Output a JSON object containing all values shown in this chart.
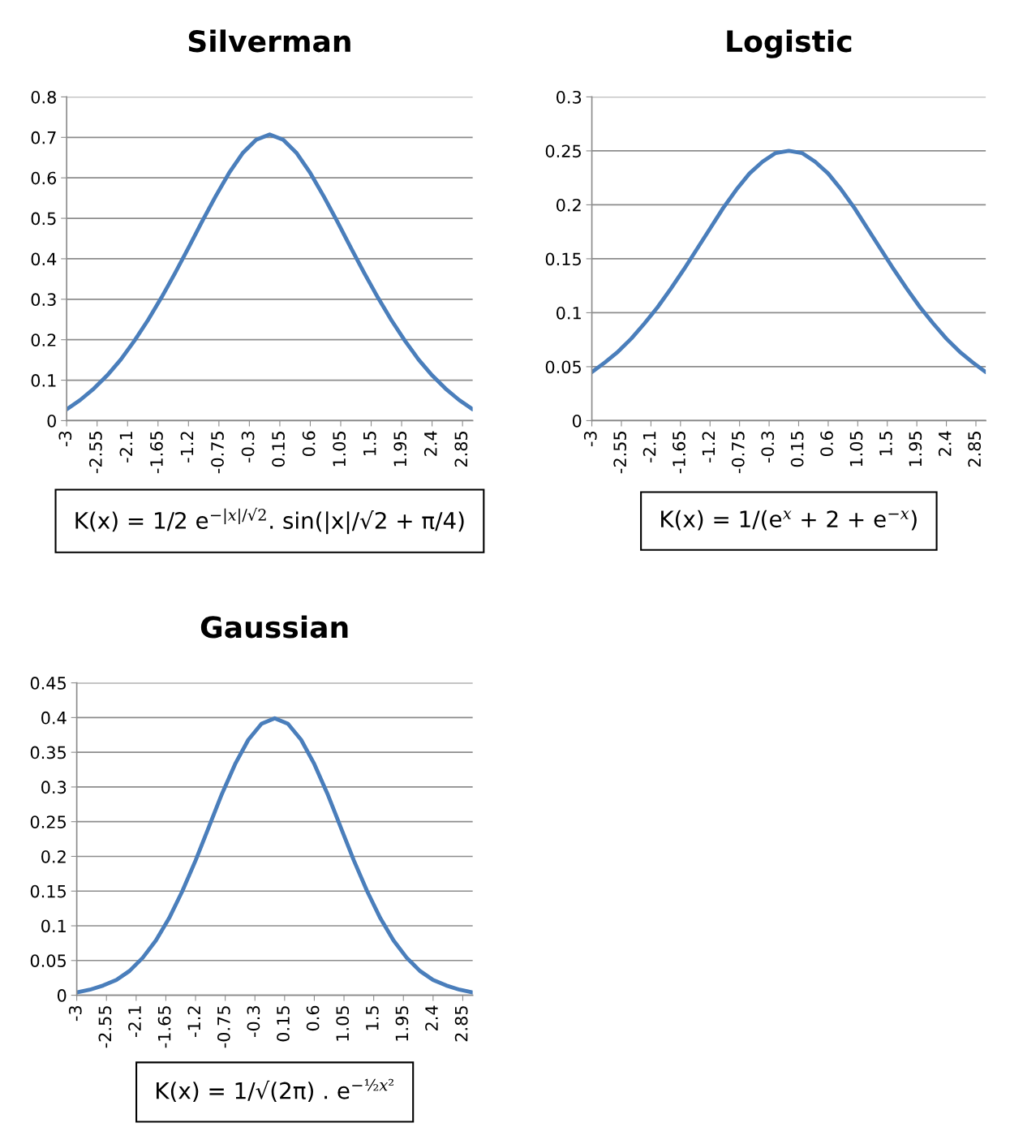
{
  "chart_data": [
    {
      "type": "line",
      "title": "Silverman",
      "x": [
        -3,
        -2.8,
        -2.6,
        -2.4,
        -2.2,
        -2,
        -1.8,
        -1.6,
        -1.4,
        -1.2,
        -1,
        -0.8,
        -0.6,
        -0.4,
        -0.2,
        0,
        0.2,
        0.4,
        0.6,
        0.8,
        1,
        1.2,
        1.4,
        1.6,
        1.8,
        2,
        2.2,
        2.4,
        2.6,
        2.8,
        3
      ],
      "series": [
        {
          "color": "#4a7ebb",
          "values": [
            0.028,
            0.051,
            0.079,
            0.112,
            0.151,
            0.197,
            0.248,
            0.304,
            0.364,
            0.427,
            0.492,
            0.554,
            0.612,
            0.661,
            0.694,
            0.707,
            0.694,
            0.661,
            0.612,
            0.554,
            0.492,
            0.427,
            0.364,
            0.304,
            0.248,
            0.197,
            0.151,
            0.112,
            0.079,
            0.051,
            0.028
          ]
        }
      ],
      "xlim": [
        -3,
        3
      ],
      "xticks": [
        -3,
        -2.55,
        -2.1,
        -1.65,
        -1.2,
        -0.75,
        -0.3,
        0.15,
        0.6,
        1.05,
        1.5,
        1.95,
        2.4,
        2.85
      ],
      "ylim": [
        0,
        0.8
      ],
      "yticks": [
        0,
        0.1,
        0.2,
        0.3,
        0.4,
        0.5,
        0.6,
        0.7,
        0.8
      ],
      "grid": "y",
      "annotations": [
        "K(x) = 1/2 e$^{−|x|/√2}$. sin(|x|/√2 + π/4)"
      ]
    },
    {
      "type": "line",
      "title": "Logistic",
      "x": [
        -3,
        -2.8,
        -2.6,
        -2.4,
        -2.2,
        -2,
        -1.8,
        -1.6,
        -1.4,
        -1.2,
        -1,
        -0.8,
        -0.6,
        -0.4,
        -0.2,
        0,
        0.2,
        0.4,
        0.6,
        0.8,
        1,
        1.2,
        1.4,
        1.6,
        1.8,
        2,
        2.2,
        2.4,
        2.6,
        2.8,
        3
      ],
      "series": [
        {
          "color": "#4a7ebb",
          "values": [
            0.045,
            0.054,
            0.064,
            0.076,
            0.09,
            0.105,
            0.122,
            0.14,
            0.159,
            0.178,
            0.197,
            0.214,
            0.229,
            0.24,
            0.248,
            0.25,
            0.248,
            0.24,
            0.229,
            0.214,
            0.197,
            0.178,
            0.159,
            0.14,
            0.122,
            0.105,
            0.09,
            0.076,
            0.064,
            0.054,
            0.045
          ]
        }
      ],
      "xlim": [
        -3,
        3
      ],
      "xticks": [
        -3,
        -2.55,
        -2.1,
        -1.65,
        -1.2,
        -0.75,
        -0.3,
        0.15,
        0.6,
        1.05,
        1.5,
        1.95,
        2.4,
        2.85
      ],
      "ylim": [
        0,
        0.3
      ],
      "yticks": [
        0,
        0.05,
        0.1,
        0.15,
        0.2,
        0.25,
        0.3
      ],
      "grid": "y",
      "annotations": [
        "K(x) = 1/(e$^{x}$ + 2 + e$^{−x}$)"
      ]
    },
    {
      "type": "line",
      "title": "Gaussian",
      "x": [
        -3,
        -2.8,
        -2.6,
        -2.4,
        -2.2,
        -2,
        -1.8,
        -1.6,
        -1.4,
        -1.2,
        -1,
        -0.8,
        -0.6,
        -0.4,
        -0.2,
        0,
        0.2,
        0.4,
        0.6,
        0.8,
        1,
        1.2,
        1.4,
        1.6,
        1.8,
        2,
        2.2,
        2.4,
        2.6,
        2.8,
        3
      ],
      "series": [
        {
          "color": "#4a7ebb",
          "values": [
            0.004,
            0.008,
            0.014,
            0.022,
            0.035,
            0.054,
            0.079,
            0.111,
            0.15,
            0.194,
            0.242,
            0.29,
            0.333,
            0.368,
            0.391,
            0.399,
            0.391,
            0.368,
            0.333,
            0.29,
            0.242,
            0.194,
            0.15,
            0.111,
            0.079,
            0.054,
            0.035,
            0.022,
            0.014,
            0.008,
            0.004
          ]
        }
      ],
      "xlim": [
        -3,
        3
      ],
      "xticks": [
        -3,
        -2.55,
        -2.1,
        -1.65,
        -1.2,
        -0.75,
        -0.3,
        0.15,
        0.6,
        1.05,
        1.5,
        1.95,
        2.4,
        2.85
      ],
      "ylim": [
        0,
        0.45
      ],
      "yticks": [
        0,
        0.05,
        0.1,
        0.15,
        0.2,
        0.25,
        0.3,
        0.35,
        0.4,
        0.45
      ],
      "grid": "y",
      "annotations": [
        "K(x) = 1/√(2π) . e$^{−½x²}$"
      ]
    }
  ]
}
